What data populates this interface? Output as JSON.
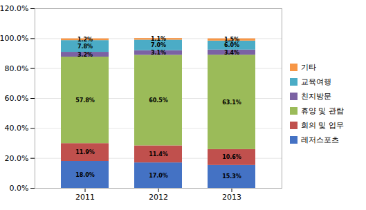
{
  "chart_data": {
    "type": "bar",
    "stacked": true,
    "data_labels": true,
    "grid": true,
    "legend": "right",
    "categories": [
      "2011",
      "2012",
      "2013"
    ],
    "series": [
      {
        "name": "레저스포츠",
        "color": "#4472C4",
        "values": [
          18.0,
          17.0,
          15.3
        ],
        "value_labels": [
          "18.0%",
          "17.0%",
          "15.3%"
        ]
      },
      {
        "name": "회의 및 업무",
        "color": "#C0504D",
        "values": [
          11.9,
          11.4,
          10.6
        ],
        "value_labels": [
          "11.9%",
          "11.4%",
          "10.6%"
        ]
      },
      {
        "name": "휴양 및 관람",
        "color": "#9BBB59",
        "values": [
          57.8,
          60.5,
          63.1
        ],
        "value_labels": [
          "57.8%",
          "60.5%",
          "63.1%"
        ]
      },
      {
        "name": "친지방문",
        "color": "#7B62A3",
        "values": [
          3.2,
          3.1,
          3.4
        ],
        "value_labels": [
          "3.2%",
          "3.1%",
          "3.4%"
        ]
      },
      {
        "name": "교육여행",
        "color": "#4BACC6",
        "values": [
          7.8,
          7.0,
          6.0
        ],
        "value_labels": [
          "7.8%",
          "7.0%",
          "6.0%"
        ]
      },
      {
        "name": "기타",
        "color": "#F79646",
        "values": [
          1.2,
          1.1,
          1.5
        ],
        "value_labels": [
          "1.2%",
          "1.1%",
          "1.5%"
        ]
      }
    ],
    "ylim": [
      0,
      120
    ],
    "yticks": [
      {
        "value": 0,
        "label": "0.0%"
      },
      {
        "value": 20,
        "label": "20.0%"
      },
      {
        "value": 40,
        "label": "40.0%"
      },
      {
        "value": 60,
        "label": "60.0%"
      },
      {
        "value": 80,
        "label": "80.0%"
      },
      {
        "value": 100,
        "label": "100.0%"
      },
      {
        "value": 120,
        "label": "120.0%"
      }
    ]
  }
}
